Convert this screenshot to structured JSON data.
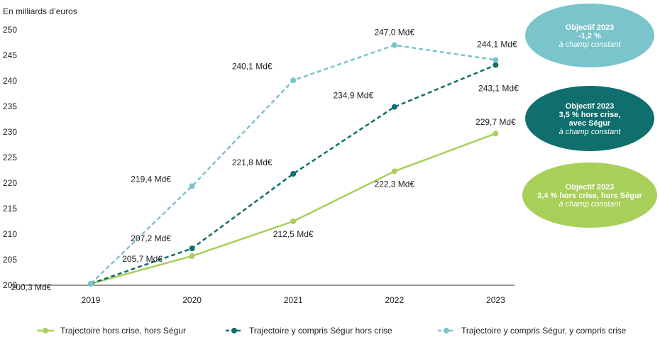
{
  "chart_data": {
    "type": "line",
    "ylabel": "En milliards d’euros",
    "x": [
      "2019",
      "2020",
      "2021",
      "2022",
      "2023"
    ],
    "yticks": [
      "200",
      "205",
      "210",
      "215",
      "220",
      "225",
      "230",
      "235",
      "240",
      "245",
      "250"
    ],
    "ylim": [
      200,
      250
    ],
    "grid": false,
    "legend_position": "bottom",
    "series": [
      {
        "name": "Trajectoire hors crise, hors Ségur",
        "color": "#a8cf5a",
        "dash": false,
        "values": [
          200.3,
          205.7,
          212.5,
          222.3,
          229.7
        ],
        "labels": [
          "200,3 Md€",
          "205,7 Md€",
          "212,5 Md€",
          "222,3 Md€",
          "229,7 Md€"
        ]
      },
      {
        "name": "Trajectoire y compris Ségur hors crise",
        "color": "#0f6e6e",
        "dash": true,
        "values": [
          200.3,
          207.2,
          221.8,
          234.9,
          243.1
        ],
        "labels": [
          "",
          "207,2 Md€",
          "221,8 Md€",
          "234,9 Md€",
          "243,1 Md€"
        ]
      },
      {
        "name": "Trajectoire y compris Ségur, y compris crise",
        "color": "#7ac4cb",
        "dash": true,
        "values": [
          200.3,
          219.4,
          240.1,
          247.0,
          244.1
        ],
        "labels": [
          "",
          "219,4 Md€",
          "240,1 Md€",
          "247,0 Md€",
          "244,1 Md€"
        ]
      }
    ]
  },
  "objectives": [
    {
      "color": "#7ac4cb",
      "lines": [
        "Objectif 2023",
        "-1,2 %"
      ],
      "italic": "à champ constant"
    },
    {
      "color": "#0f6e6e",
      "lines": [
        "Objectif 2023",
        "3,5 % hors crise,",
        "avec Ségur"
      ],
      "italic": "à champ constant"
    },
    {
      "color": "#a8cf5a",
      "lines": [
        "Objectif 2023",
        "3,4 % hors crise, hors Ségur"
      ],
      "italic": "à champ constant"
    }
  ]
}
